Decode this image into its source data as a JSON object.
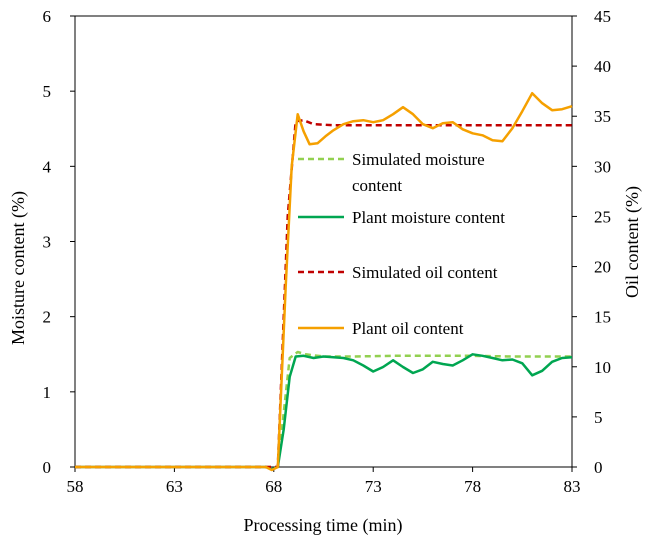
{
  "chart_data": {
    "type": "line",
    "xlabel": "Processing time (min)",
    "ylabel_left": "Moisture content (%)",
    "ylabel_right": "Oil content (%)",
    "xlim": [
      58,
      83
    ],
    "ylim_left": [
      0,
      6
    ],
    "ylim_right": [
      0,
      45
    ],
    "x_ticks": [
      "58",
      "63",
      "68",
      "73",
      "78",
      "83"
    ],
    "y_left_ticks": [
      "0",
      "1",
      "2",
      "3",
      "4",
      "5",
      "6"
    ],
    "y_right_ticks": [
      "0",
      "5",
      "10",
      "15",
      "20",
      "25",
      "30",
      "35",
      "40",
      "45"
    ],
    "grid": false,
    "legend_position": "center-right",
    "series": [
      {
        "name": "Simulated moisture content",
        "axis": "left",
        "color": "#92d050",
        "dash": "dashed",
        "x": [
          58,
          68.2,
          68.8,
          69.2,
          69.6,
          70.5,
          72,
          74,
          76,
          78,
          80,
          82,
          83
        ],
        "y": [
          0,
          0,
          1.45,
          1.53,
          1.5,
          1.47,
          1.47,
          1.48,
          1.48,
          1.48,
          1.47,
          1.47,
          1.47
        ]
      },
      {
        "name": "Plant moisture content",
        "axis": "left",
        "color": "#00a651",
        "dash": "solid",
        "x": [
          58,
          67.6,
          67.9,
          68.2,
          68.5,
          68.8,
          69.1,
          69.5,
          70,
          70.5,
          71,
          71.5,
          72,
          72.5,
          73,
          73.5,
          74,
          74.5,
          75,
          75.5,
          76,
          76.5,
          77,
          77.5,
          78,
          78.5,
          79,
          79.5,
          80,
          80.5,
          81,
          81.5,
          82,
          82.5,
          83
        ],
        "y": [
          0,
          0,
          -0.03,
          0,
          0.5,
          1.2,
          1.47,
          1.48,
          1.45,
          1.47,
          1.46,
          1.45,
          1.42,
          1.35,
          1.27,
          1.33,
          1.42,
          1.33,
          1.25,
          1.3,
          1.4,
          1.37,
          1.35,
          1.42,
          1.5,
          1.48,
          1.45,
          1.42,
          1.43,
          1.38,
          1.22,
          1.28,
          1.4,
          1.45,
          1.46
        ]
      },
      {
        "name": "Simulated oil content",
        "axis": "right",
        "color": "#c00000",
        "dash": "dashed",
        "x": [
          58,
          68.2,
          68.7,
          69.1,
          69.5,
          70,
          71,
          73,
          75,
          77,
          79,
          81,
          83
        ],
        "y": [
          0,
          0,
          25,
          34.5,
          34.6,
          34.2,
          34.1,
          34.1,
          34.1,
          34.1,
          34.1,
          34.1,
          34.1
        ]
      },
      {
        "name": "Plant oil content",
        "axis": "right",
        "color": "#f5a000",
        "dash": "solid",
        "x": [
          58,
          67.6,
          67.9,
          68.2,
          68.6,
          68.9,
          69.2,
          69.5,
          69.8,
          70.2,
          70.6,
          71,
          71.5,
          72,
          72.5,
          73,
          73.5,
          74,
          74.5,
          75,
          75.5,
          76,
          76.5,
          77,
          77.5,
          78,
          78.5,
          79,
          79.5,
          80,
          80.5,
          81,
          81.5,
          82,
          82.5,
          83
        ],
        "y": [
          0,
          0,
          -0.3,
          0,
          18,
          30,
          35.2,
          33.5,
          32.2,
          32.3,
          33,
          33.6,
          34.2,
          34.5,
          34.6,
          34.4,
          34.6,
          35.2,
          35.9,
          35.2,
          34.2,
          33.8,
          34.3,
          34.4,
          33.7,
          33.3,
          33.1,
          32.6,
          32.5,
          33.8,
          35.5,
          37.3,
          36.3,
          35.6,
          35.7,
          36
        ]
      }
    ]
  }
}
